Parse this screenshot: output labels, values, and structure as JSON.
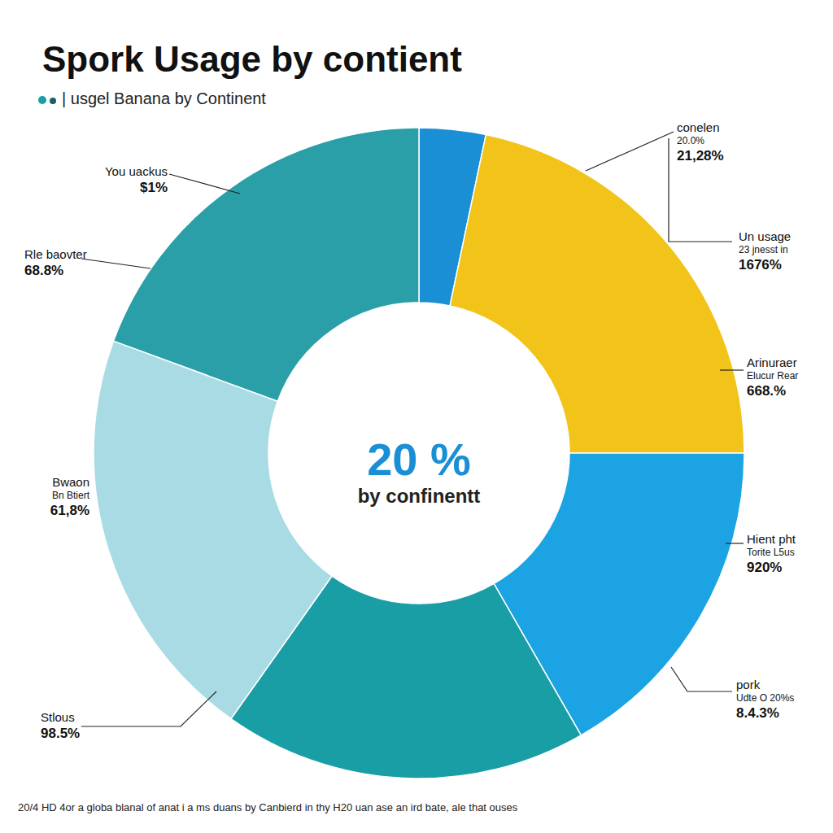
{
  "chart_data": {
    "type": "pie",
    "title": "Spork Usage by contient",
    "subtitle": "| usgel Banana by Continent",
    "center_text": [
      "20 %",
      "by confinentt"
    ],
    "values": [
      3.3,
      21.7,
      16.7,
      18.1,
      20.8,
      19.4
    ],
    "colors": [
      "#1a8fd6",
      "#f2c318",
      "#1ba3e3",
      "#1a9ea6",
      "#a8dbe4",
      "#2a9fa8"
    ],
    "annotations": [
      {
        "lines": [
          "You uackus",
          "$1%"
        ]
      },
      {
        "lines": [
          "Rle baovter",
          "68.8%"
        ]
      },
      {
        "lines": [
          "Bwaon",
          "Bn Btiert",
          "61,8%"
        ]
      },
      {
        "lines": [
          "Stlous",
          "98.5%"
        ]
      },
      {
        "lines": [
          "conelen",
          "20.0%",
          "21,28%"
        ]
      },
      {
        "lines": [
          "Un usage",
          "23 jnesst in",
          "1676%"
        ]
      },
      {
        "lines": [
          "Arinuraer",
          "Elucur Rear",
          "668.%"
        ]
      },
      {
        "lines": [
          "Hient pht",
          "Torite L5us",
          "920%"
        ]
      },
      {
        "lines": [
          "pork",
          "Udte O 20%s",
          "8.4.3%"
        ]
      }
    ],
    "footnote": "20/4 HD 4or a globa blanal of anat i a ms duans by Canbierd in thy H20 uan ase an ird bate, ale that ouses"
  }
}
